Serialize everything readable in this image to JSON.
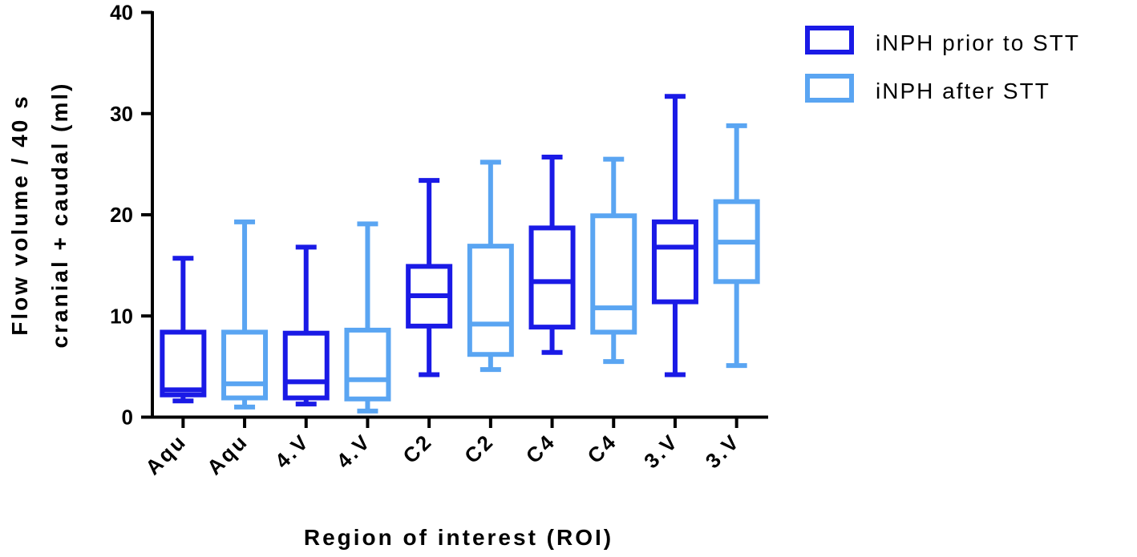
{
  "chart_data": {
    "type": "box",
    "y_axis": {
      "label_line1": "Flow volume / 40 s",
      "label_line2": "cranial + caudal (ml)",
      "ylim": [
        0,
        40
      ],
      "ticks": [
        "0",
        "10",
        "20",
        "30",
        "40"
      ]
    },
    "x_axis": {
      "label": "Region of interest (ROI)",
      "categories": [
        "Aqu",
        "Aqu",
        "4.V",
        "4.V",
        "C2",
        "C2",
        "C4",
        "C4",
        "3.V",
        "3.V"
      ]
    },
    "legend": {
      "position": "top-right",
      "items": [
        {
          "name": "iNPH prior to STT",
          "color": "#1a1ae6"
        },
        {
          "name": "iNPH after STT",
          "color": "#5aa5f2"
        }
      ]
    },
    "boxes": [
      {
        "category": "Aqu",
        "series": 0,
        "min": 1.6,
        "q1": 2.2,
        "median": 2.7,
        "q3": 8.4,
        "max": 15.7
      },
      {
        "category": "Aqu",
        "series": 1,
        "min": 1.0,
        "q1": 1.9,
        "median": 3.3,
        "q3": 8.4,
        "max": 19.3
      },
      {
        "category": "4.V",
        "series": 0,
        "min": 1.3,
        "q1": 1.9,
        "median": 3.5,
        "q3": 8.3,
        "max": 16.8
      },
      {
        "category": "4.V",
        "series": 1,
        "min": 0.6,
        "q1": 1.8,
        "median": 3.7,
        "q3": 8.6,
        "max": 19.1
      },
      {
        "category": "C2",
        "series": 0,
        "min": 4.2,
        "q1": 9.0,
        "median": 12.0,
        "q3": 14.9,
        "max": 23.4
      },
      {
        "category": "C2",
        "series": 1,
        "min": 4.7,
        "q1": 6.2,
        "median": 9.2,
        "q3": 16.9,
        "max": 25.2
      },
      {
        "category": "C4",
        "series": 0,
        "min": 6.4,
        "q1": 8.9,
        "median": 13.4,
        "q3": 18.7,
        "max": 25.7
      },
      {
        "category": "C4",
        "series": 1,
        "min": 5.5,
        "q1": 8.4,
        "median": 10.8,
        "q3": 19.9,
        "max": 25.5
      },
      {
        "category": "3.V",
        "series": 0,
        "min": 4.2,
        "q1": 11.4,
        "median": 16.8,
        "q3": 19.3,
        "max": 31.7
      },
      {
        "category": "3.V",
        "series": 1,
        "min": 5.1,
        "q1": 13.4,
        "median": 17.3,
        "q3": 21.3,
        "max": 28.8
      }
    ]
  }
}
